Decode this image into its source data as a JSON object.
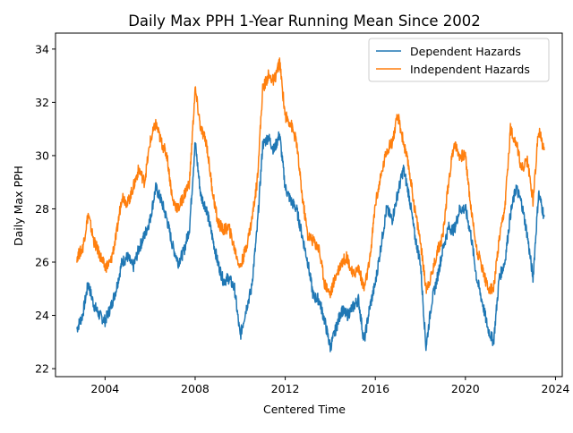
{
  "chart_data": {
    "type": "line",
    "title": "Daily Max PPH 1-Year Running Mean Since 2002",
    "xlabel": "Centered Time",
    "ylabel": "Daily Max PPH",
    "xlim": [
      2001.8,
      2024.3
    ],
    "ylim": [
      21.7,
      34.6
    ],
    "x_ticks": [
      "2004",
      "2008",
      "2012",
      "2016",
      "2020",
      "2024"
    ],
    "y_ticks": [
      "22",
      "24",
      "26",
      "28",
      "30",
      "32",
      "34"
    ],
    "grid": false,
    "legend_position": "top-right",
    "series": [
      {
        "name": "Dependent Hazards",
        "color": "#1f77b4",
        "x": [
          2002.75,
          2003.0,
          2003.25,
          2003.5,
          2003.75,
          2004.0,
          2004.25,
          2004.5,
          2004.75,
          2005.0,
          2005.25,
          2005.5,
          2005.75,
          2006.0,
          2006.25,
          2006.5,
          2006.75,
          2007.0,
          2007.25,
          2007.5,
          2007.75,
          2008.0,
          2008.25,
          2008.5,
          2008.75,
          2009.0,
          2009.25,
          2009.5,
          2009.75,
          2010.0,
          2010.25,
          2010.5,
          2010.75,
          2011.0,
          2011.25,
          2011.5,
          2011.75,
          2012.0,
          2012.25,
          2012.5,
          2012.75,
          2013.0,
          2013.25,
          2013.5,
          2013.75,
          2014.0,
          2014.25,
          2014.5,
          2014.75,
          2015.0,
          2015.25,
          2015.5,
          2015.75,
          2016.0,
          2016.25,
          2016.5,
          2016.75,
          2017.0,
          2017.25,
          2017.5,
          2017.75,
          2018.0,
          2018.25,
          2018.5,
          2018.75,
          2019.0,
          2019.25,
          2019.5,
          2019.75,
          2020.0,
          2020.25,
          2020.5,
          2020.75,
          2021.0,
          2021.25,
          2021.5,
          2021.75,
          2022.0,
          2022.25,
          2022.5,
          2022.75,
          2023.0,
          2023.25,
          2023.5
        ],
        "values": [
          23.5,
          24.0,
          25.2,
          24.4,
          24.0,
          23.8,
          24.3,
          25.0,
          26.0,
          26.2,
          25.8,
          26.5,
          27.0,
          27.6,
          28.8,
          28.3,
          27.6,
          26.6,
          26.0,
          26.4,
          27.3,
          30.5,
          28.5,
          28.0,
          27.0,
          26.0,
          25.3,
          25.4,
          25.0,
          23.2,
          24.2,
          25.0,
          27.2,
          30.4,
          30.7,
          30.2,
          30.8,
          28.8,
          28.3,
          28.0,
          27.0,
          26.0,
          24.7,
          24.6,
          23.8,
          22.8,
          23.5,
          24.2,
          24.0,
          24.3,
          24.6,
          23.0,
          24.3,
          25.2,
          26.6,
          28.0,
          27.6,
          28.6,
          29.5,
          28.5,
          27.0,
          26.0,
          22.8,
          24.5,
          25.4,
          26.5,
          27.3,
          27.2,
          28.0,
          28.0,
          27.0,
          25.4,
          24.5,
          23.5,
          23.0,
          25.4,
          26.0,
          27.8,
          28.8,
          28.2,
          27.0,
          25.4,
          28.6,
          27.7
        ]
      },
      {
        "name": "Independent Hazards",
        "color": "#ff7f0e",
        "x": [
          2002.75,
          2003.0,
          2003.25,
          2003.5,
          2003.75,
          2004.0,
          2004.25,
          2004.5,
          2004.75,
          2005.0,
          2005.25,
          2005.5,
          2005.75,
          2006.0,
          2006.25,
          2006.5,
          2006.75,
          2007.0,
          2007.25,
          2007.5,
          2007.75,
          2008.0,
          2008.25,
          2008.5,
          2008.75,
          2009.0,
          2009.25,
          2009.5,
          2009.75,
          2010.0,
          2010.25,
          2010.5,
          2010.75,
          2011.0,
          2011.25,
          2011.5,
          2011.75,
          2012.0,
          2012.25,
          2012.5,
          2012.75,
          2013.0,
          2013.25,
          2013.5,
          2013.75,
          2014.0,
          2014.25,
          2014.5,
          2014.75,
          2015.0,
          2015.25,
          2015.5,
          2015.75,
          2016.0,
          2016.25,
          2016.5,
          2016.75,
          2017.0,
          2017.25,
          2017.5,
          2017.75,
          2018.0,
          2018.25,
          2018.5,
          2018.75,
          2019.0,
          2019.25,
          2019.5,
          2019.75,
          2020.0,
          2020.25,
          2020.5,
          2020.75,
          2021.0,
          2021.25,
          2021.5,
          2021.75,
          2022.0,
          2022.25,
          2022.5,
          2022.75,
          2023.0,
          2023.25,
          2023.5
        ],
        "values": [
          26.2,
          26.5,
          27.8,
          26.8,
          26.3,
          25.8,
          26.0,
          27.0,
          28.5,
          28.2,
          28.8,
          29.5,
          29.0,
          30.5,
          31.2,
          30.5,
          30.0,
          28.3,
          28.0,
          28.5,
          29.0,
          32.5,
          31.0,
          30.5,
          28.8,
          27.5,
          27.2,
          27.3,
          26.5,
          25.8,
          26.5,
          27.5,
          29.0,
          32.5,
          33.0,
          32.8,
          33.5,
          31.5,
          31.2,
          30.5,
          28.5,
          27.0,
          26.8,
          26.5,
          25.2,
          24.8,
          25.5,
          26.0,
          26.2,
          25.5,
          25.8,
          25.0,
          26.0,
          28.2,
          29.2,
          30.2,
          30.5,
          31.5,
          30.5,
          29.5,
          28.0,
          26.8,
          25.0,
          25.5,
          26.4,
          27.0,
          29.0,
          30.5,
          30.0,
          30.0,
          28.0,
          26.5,
          25.8,
          25.0,
          25.0,
          26.8,
          28.0,
          31.0,
          30.5,
          29.5,
          29.8,
          28.3,
          31.0,
          30.2
        ]
      }
    ]
  }
}
